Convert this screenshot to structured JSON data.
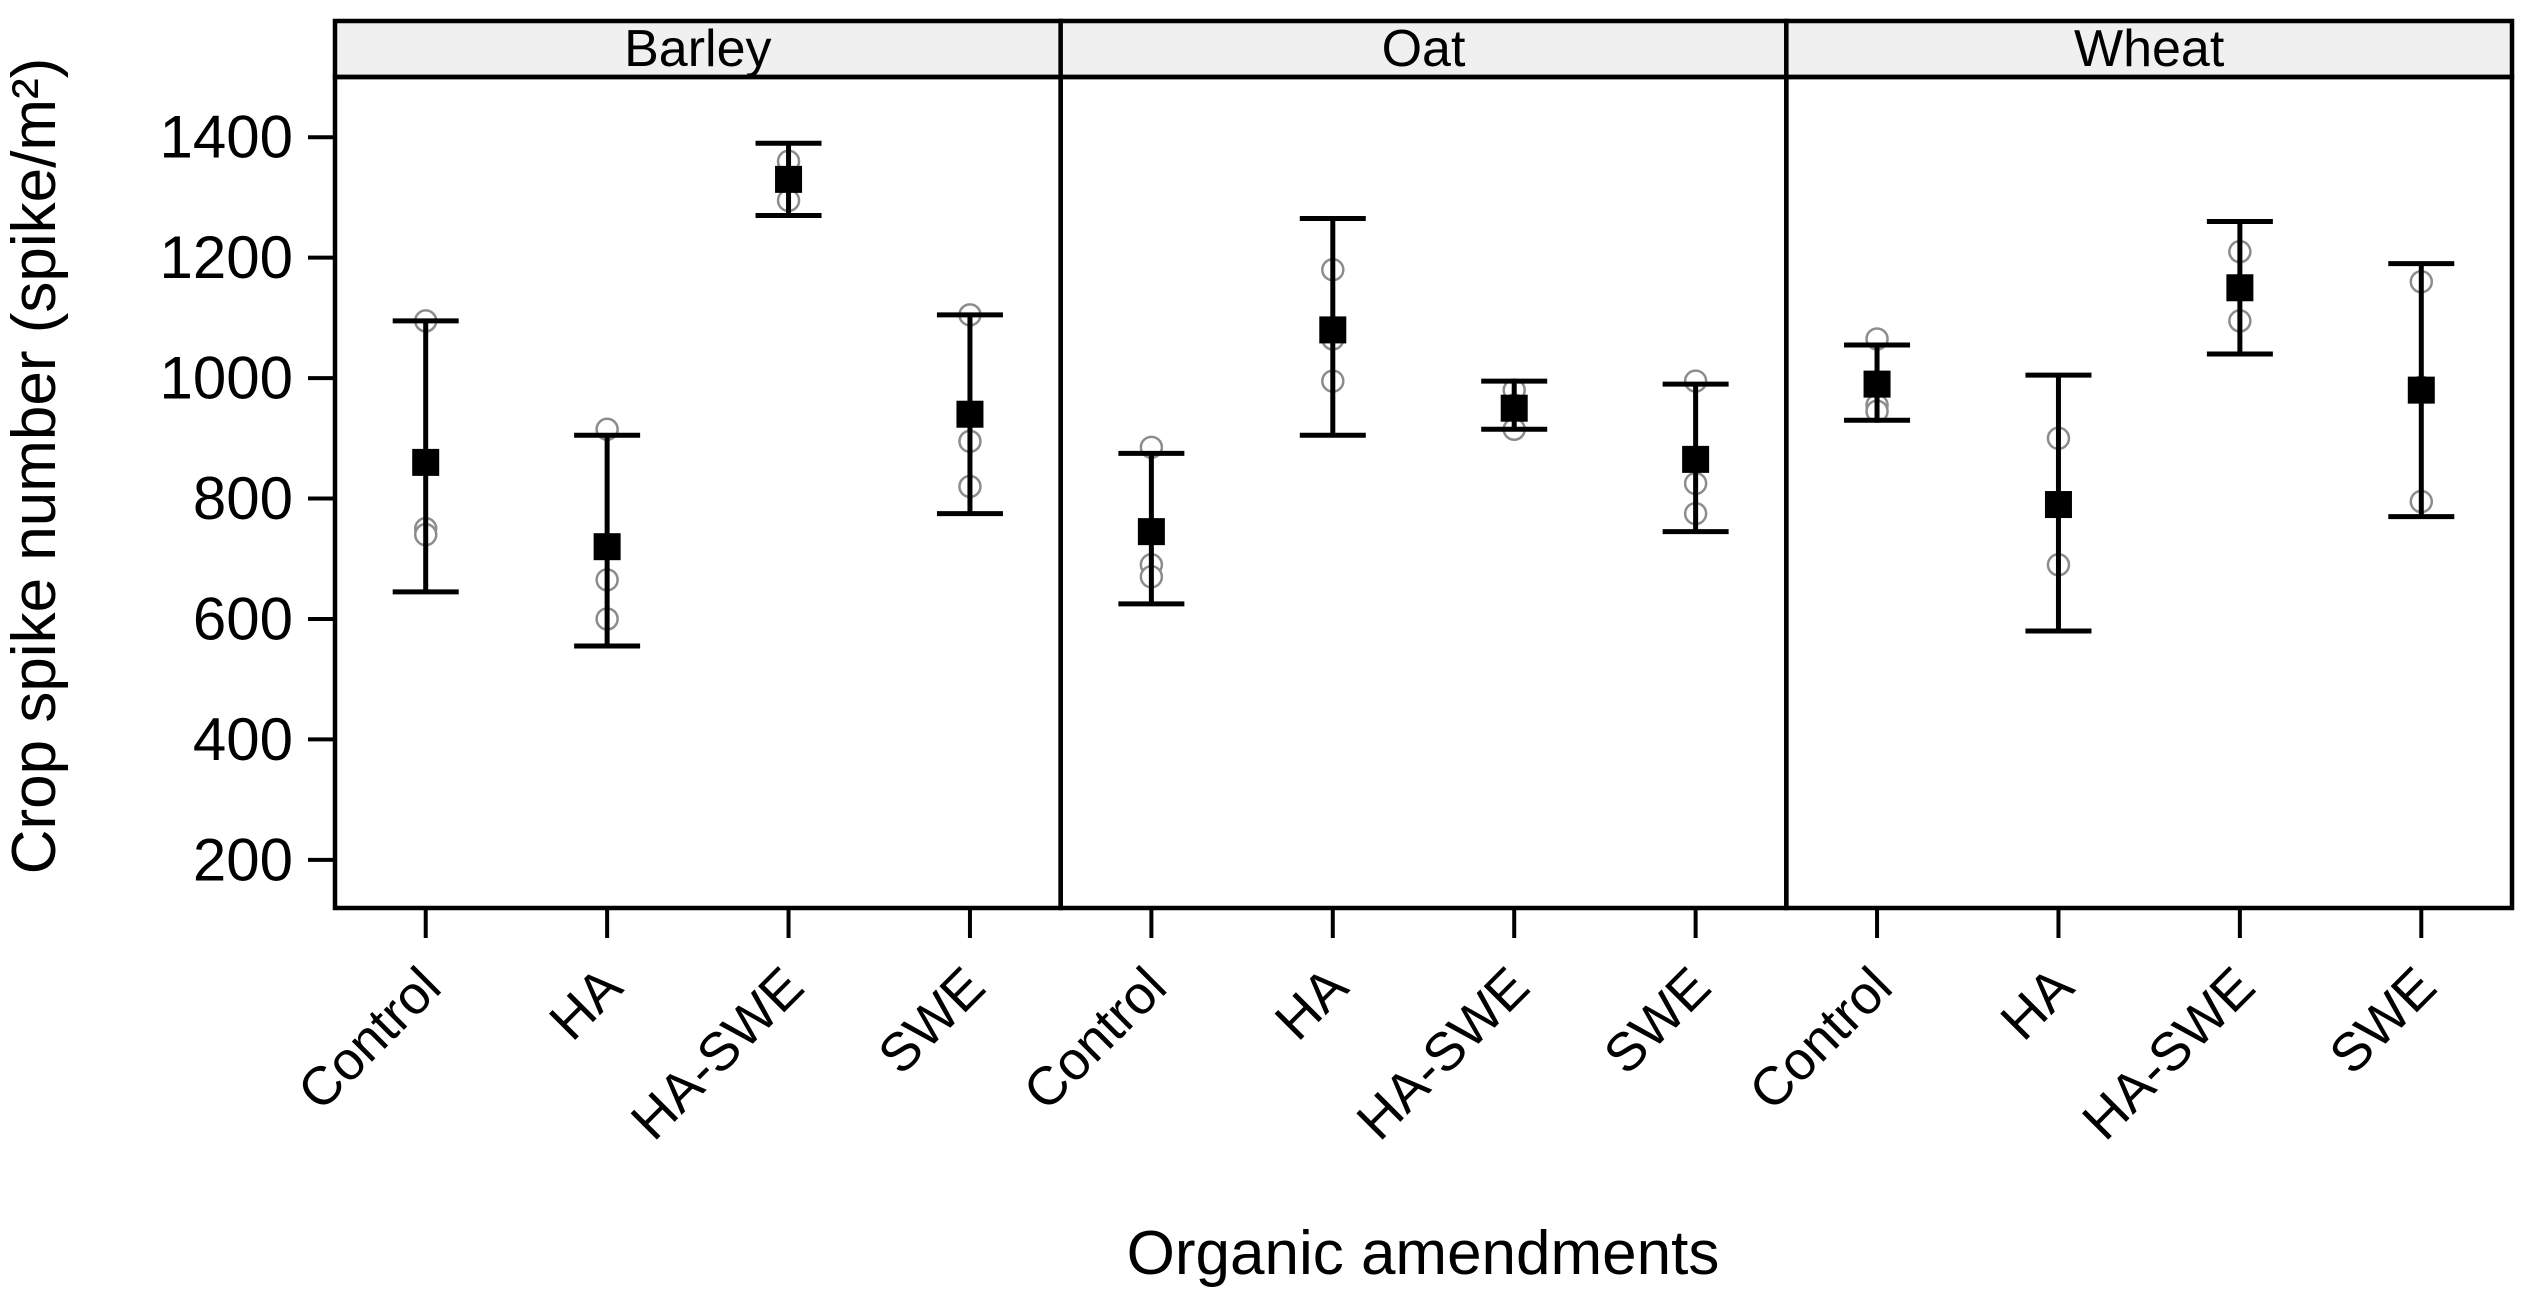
{
  "chart_data": {
    "type": "scatter",
    "subtype": "faceted-mean-errorbar-dotplot",
    "title": "",
    "xlabel": "Organic amendments",
    "ylabel": "Crop spike number (spike/m²)",
    "ylim": [
      120,
      1500
    ],
    "yticks": [
      200,
      400,
      600,
      800,
      1000,
      1200,
      1400
    ],
    "categories": [
      "Control",
      "HA",
      "HA-SWE",
      "SWE"
    ],
    "grid": false,
    "legend": {
      "visible": false
    },
    "markers": {
      "mean": "filled-square",
      "replicate": "open-circle",
      "errorbar": "capped-vertical-line"
    },
    "facets": [
      {
        "name": "Barley",
        "groups": [
          {
            "treatment": "Control",
            "mean": 860,
            "ci_low": 645,
            "ci_high": 1095,
            "points": [
              1095,
              750,
              740
            ]
          },
          {
            "treatment": "HA",
            "mean": 720,
            "ci_low": 555,
            "ci_high": 905,
            "points": [
              915,
              665,
              600
            ]
          },
          {
            "treatment": "HA-SWE",
            "mean": 1330,
            "ci_low": 1270,
            "ci_high": 1390,
            "points": [
              1360,
              1330,
              1295
            ]
          },
          {
            "treatment": "SWE",
            "mean": 940,
            "ci_low": 775,
            "ci_high": 1105,
            "points": [
              1105,
              895,
              820
            ]
          }
        ]
      },
      {
        "name": "Oat",
        "groups": [
          {
            "treatment": "Control",
            "mean": 745,
            "ci_low": 625,
            "ci_high": 875,
            "points": [
              885,
              690,
              670
            ]
          },
          {
            "treatment": "HA",
            "mean": 1080,
            "ci_low": 905,
            "ci_high": 1265,
            "points": [
              1180,
              1065,
              995
            ]
          },
          {
            "treatment": "HA-SWE",
            "mean": 950,
            "ci_low": 915,
            "ci_high": 995,
            "points": [
              980,
              955,
              915
            ]
          },
          {
            "treatment": "SWE",
            "mean": 865,
            "ci_low": 745,
            "ci_high": 990,
            "points": [
              995,
              825,
              775
            ]
          }
        ]
      },
      {
        "name": "Wheat",
        "groups": [
          {
            "treatment": "Control",
            "mean": 990,
            "ci_low": 930,
            "ci_high": 1055,
            "points": [
              1065,
              955,
              945
            ]
          },
          {
            "treatment": "HA",
            "mean": 790,
            "ci_low": 580,
            "ci_high": 1005,
            "points": [
              900,
              790,
              690
            ]
          },
          {
            "treatment": "HA-SWE",
            "mean": 1150,
            "ci_low": 1040,
            "ci_high": 1260,
            "points": [
              1210,
              1150,
              1095
            ]
          },
          {
            "treatment": "SWE",
            "mean": 980,
            "ci_low": 770,
            "ci_high": 1190,
            "points": [
              1160,
              985,
              795
            ]
          }
        ]
      }
    ]
  },
  "colors": {
    "ink": "#000000",
    "header_fill": "#f0f0f0",
    "point_stroke": "#8c8c8c",
    "point_fill": "#ffffff",
    "background": "#ffffff"
  }
}
